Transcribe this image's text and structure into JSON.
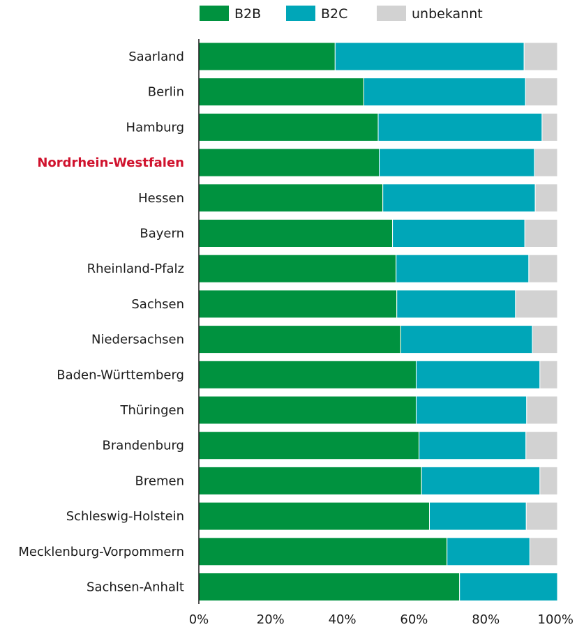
{
  "chart_data": {
    "type": "bar",
    "orientation": "horizontal",
    "stacked": true,
    "title": "",
    "xlabel": "",
    "ylabel": "",
    "xlim": [
      0,
      100
    ],
    "xticks": [
      "0%",
      "20%",
      "40%",
      "60%",
      "80%",
      "100%"
    ],
    "grid": false,
    "legend": "top",
    "highlight_category": "Nordrhein-Westfalen",
    "highlight_color": "#d0122d",
    "categories": [
      "Saarland",
      "Berlin",
      "Hamburg",
      "Nordrhein-Westfalen",
      "Hessen",
      "Bayern",
      "Rheinland-Pfalz",
      "Sachsen",
      "Niedersachsen",
      "Baden-Württemberg",
      "Thüringen",
      "Brandenburg",
      "Bremen",
      "Schleswig-Holstein",
      "Mecklenburg-Vorpommern",
      "Sachsen-Anhalt"
    ],
    "series": [
      {
        "name": "B2B",
        "color": "#00923f",
        "values": [
          38,
          46,
          50,
          50.3,
          51.3,
          54,
          55,
          55.2,
          56.3,
          60.6,
          60.6,
          61.4,
          62.1,
          64.3,
          69.2,
          72.7
        ]
      },
      {
        "name": "B2C",
        "color": "#00a6b8",
        "values": [
          52.7,
          45.1,
          45.7,
          43.3,
          42.5,
          36.9,
          37,
          33.1,
          36.7,
          34.5,
          30.8,
          29.8,
          33,
          27,
          23.1,
          27.3
        ]
      },
      {
        "name": "unbekannt",
        "color": "#d2d2d2",
        "values": [
          9.3,
          8.9,
          4.3,
          6.4,
          6.2,
          9.1,
          8,
          11.7,
          7,
          4.9,
          8.6,
          8.8,
          4.9,
          8.7,
          7.7,
          0
        ]
      }
    ]
  }
}
